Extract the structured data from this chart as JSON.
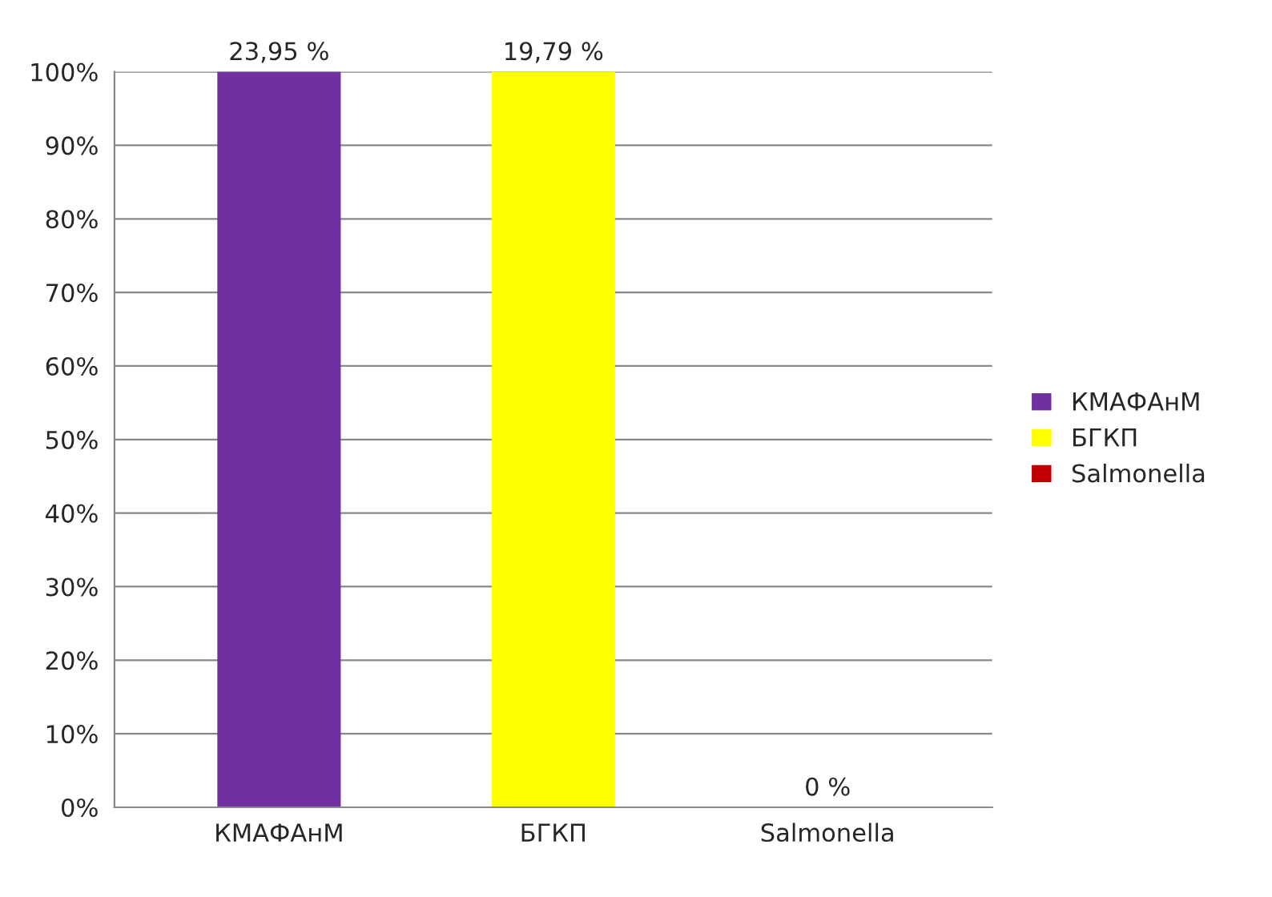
{
  "chart_data": {
    "type": "bar",
    "categories": [
      "КМАФАнМ",
      "БГКП",
      "Salmonella"
    ],
    "series": [
      {
        "name": "КМАФАнМ",
        "color": "#7030a0",
        "values": [
          100,
          null,
          null
        ]
      },
      {
        "name": "БГКП",
        "color": "#ffff00",
        "values": [
          null,
          100,
          null
        ]
      },
      {
        "name": "Salmonella",
        "color": "#c00000",
        "values": [
          null,
          null,
          0
        ]
      }
    ],
    "annotations": [
      {
        "text": "23,95 %",
        "x": "КМАФАнМ",
        "y": 100
      },
      {
        "text": "19,79 %",
        "x": "БГКП",
        "y": 100
      },
      {
        "text": "0 %",
        "x": "Salmonella",
        "y": 0
      }
    ],
    "ylim": [
      0,
      100
    ],
    "yticks": [
      {
        "value": 0,
        "label": "0%"
      },
      {
        "value": 10,
        "label": "10%"
      },
      {
        "value": 20,
        "label": "20%"
      },
      {
        "value": 30,
        "label": "30%"
      },
      {
        "value": 40,
        "label": "40%"
      },
      {
        "value": 50,
        "label": "50%"
      },
      {
        "value": 60,
        "label": "60%"
      },
      {
        "value": 70,
        "label": "70%"
      },
      {
        "value": 80,
        "label": "80%"
      },
      {
        "value": 90,
        "label": "90%"
      },
      {
        "value": 100,
        "label": "100%"
      }
    ],
    "grid": "y",
    "legend": "right"
  }
}
